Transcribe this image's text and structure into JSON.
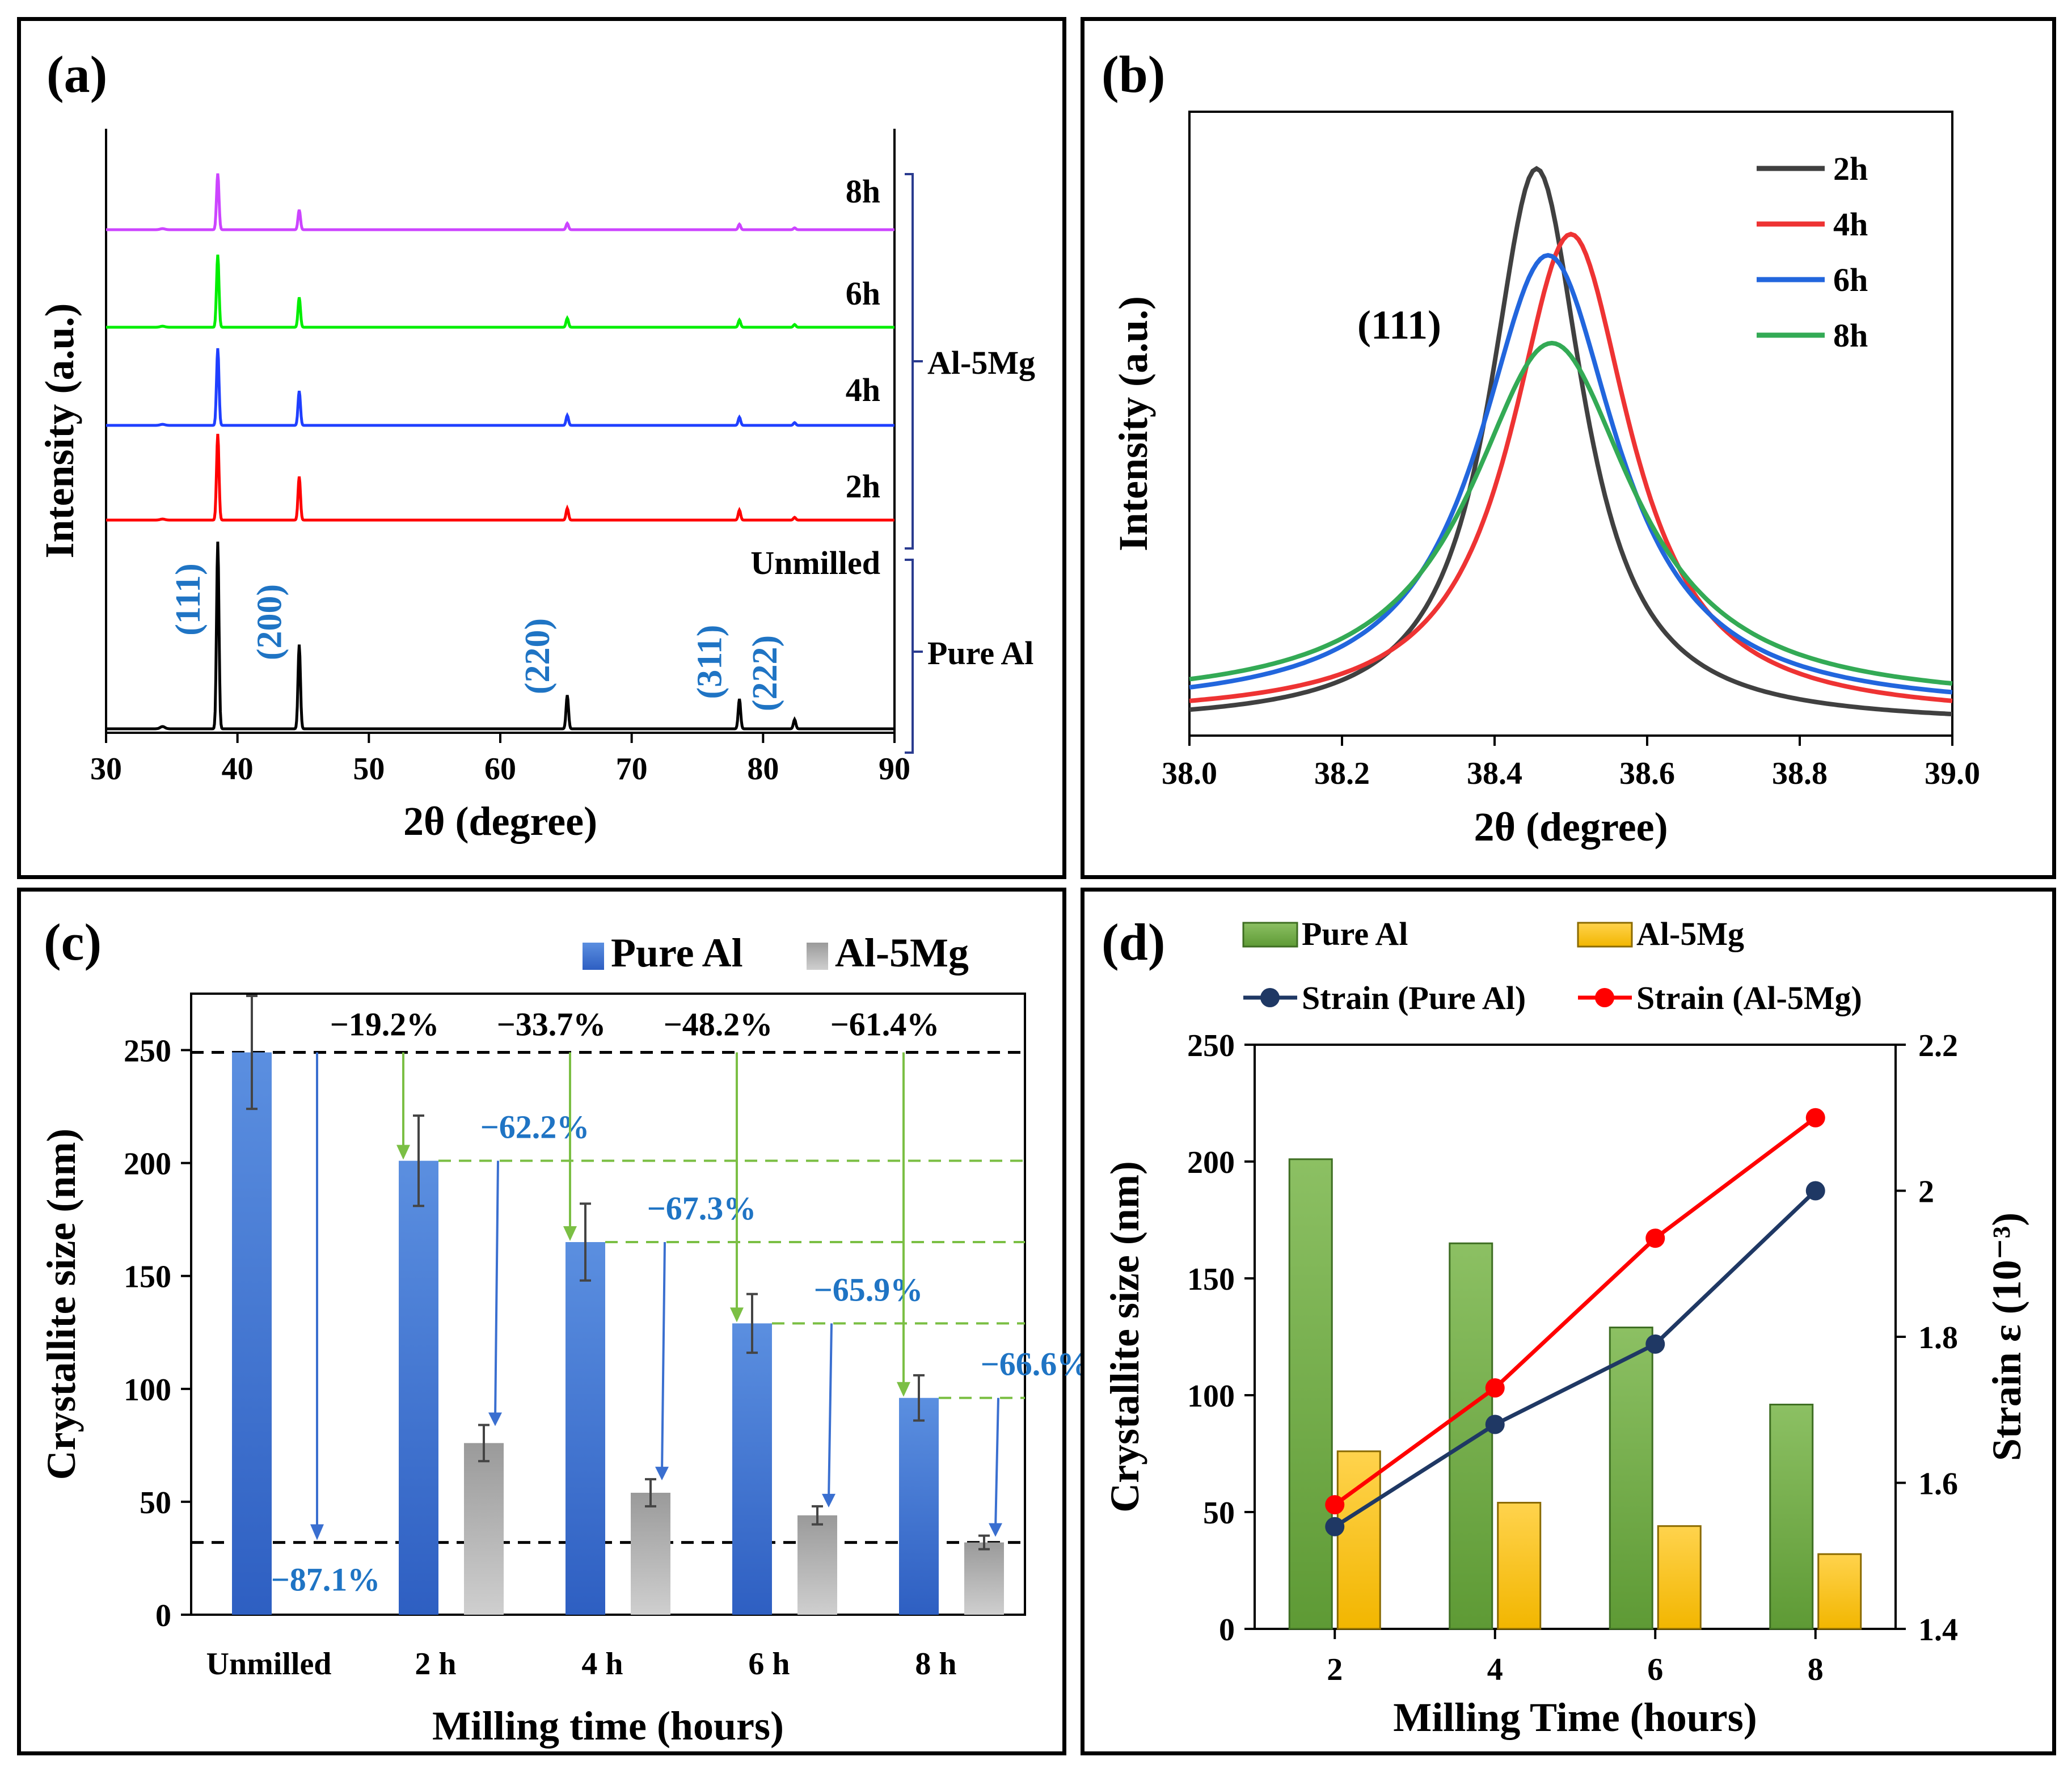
{
  "chart_data": [
    {
      "panel": "(a)",
      "type": "line",
      "xlabel": "2θ (degree)",
      "ylabel": "Intensity (a.u.)",
      "xlim": [
        30,
        90
      ],
      "xticks": [
        30,
        40,
        50,
        60,
        70,
        80,
        90
      ],
      "series": [
        {
          "name": "Unmilled",
          "color": "#000000",
          "peaks": [
            [
              38.5,
              1.0
            ],
            [
              44.7,
              0.45
            ],
            [
              65.1,
              0.18
            ],
            [
              78.2,
              0.16
            ],
            [
              82.4,
              0.05
            ]
          ]
        },
        {
          "name": "2h",
          "color": "#ff0000",
          "peaks": [
            [
              38.5,
              0.95
            ],
            [
              44.7,
              0.48
            ],
            [
              65.1,
              0.13
            ],
            [
              78.2,
              0.11
            ],
            [
              82.4,
              0.03
            ]
          ]
        },
        {
          "name": "4h",
          "color": "#1f3fff",
          "peaks": [
            [
              38.5,
              0.85
            ],
            [
              44.7,
              0.38
            ],
            [
              65.1,
              0.11
            ],
            [
              78.2,
              0.09
            ],
            [
              82.4,
              0.03
            ]
          ]
        },
        {
          "name": "6h",
          "color": "#00ee00",
          "peaks": [
            [
              38.5,
              0.8
            ],
            [
              44.7,
              0.33
            ],
            [
              65.1,
              0.1
            ],
            [
              78.2,
              0.08
            ],
            [
              82.4,
              0.03
            ]
          ]
        },
        {
          "name": "8h",
          "color": "#cc44ff",
          "peaks": [
            [
              38.5,
              0.62
            ],
            [
              44.7,
              0.22
            ],
            [
              65.1,
              0.07
            ],
            [
              78.2,
              0.06
            ],
            [
              82.4,
              0.02
            ]
          ]
        }
      ],
      "peak_labels": [
        {
          "label": "(111)",
          "x": 38.5
        },
        {
          "label": "(200)",
          "x": 44.7
        },
        {
          "label": "(220)",
          "x": 65.1
        },
        {
          "label": "(311)",
          "x": 78.2
        },
        {
          "label": "(222)",
          "x": 82.4
        }
      ],
      "group_labels": [
        "Al-5Mg",
        "Pure Al"
      ]
    },
    {
      "panel": "(b)",
      "type": "line",
      "xlabel": "2θ (degree)",
      "ylabel": "Intensity (a.u.)",
      "xlim": [
        38.0,
        39.0
      ],
      "xticks": [
        "38.0",
        "38.2",
        "38.4",
        "38.6",
        "38.8",
        "39.0"
      ],
      "annotation": "(111)",
      "series": [
        {
          "name": "2h",
          "color": "#404040",
          "center": 38.455,
          "height": 1.0,
          "width": 0.075
        },
        {
          "name": "4h",
          "color": "#ee3333",
          "center": 38.5,
          "height": 0.87,
          "width": 0.095
        },
        {
          "name": "6h",
          "color": "#2266dd",
          "center": 38.47,
          "height": 0.82,
          "width": 0.11
        },
        {
          "name": "8h",
          "color": "#33aa55",
          "center": 38.475,
          "height": 0.65,
          "width": 0.13
        }
      ]
    },
    {
      "panel": "(c)",
      "type": "bar",
      "xlabel": "Milling time (hours)",
      "ylabel": "Crystallite size (nm)",
      "ylim": [
        0,
        275
      ],
      "yticks": [
        0,
        50,
        100,
        150,
        200,
        250
      ],
      "categories": [
        "Unmilled",
        "2 h",
        "4 h",
        "6 h",
        "8 h"
      ],
      "series": [
        {
          "name": "Pure Al",
          "values": [
            249,
            201,
            165,
            129,
            96
          ],
          "errors": [
            25,
            20,
            17,
            13,
            10
          ]
        },
        {
          "name": "Al-5Mg",
          "values": [
            null,
            76,
            54,
            44,
            32
          ],
          "errors": [
            null,
            8,
            6,
            4,
            3
          ]
        }
      ],
      "reduction_labels": [
        "−19.2%",
        "−33.7%",
        "−48.2%",
        "−61.4%"
      ],
      "mg_reduction_labels": [
        "−62.2%",
        "−67.3%",
        "−65.9%",
        "−66.6%"
      ],
      "total_reduction_label": "−87.1%"
    },
    {
      "panel": "(d)",
      "type": "bar",
      "xlabel": "Milling Time (hours)",
      "ylabel": "Crystallite size (nm)",
      "y2label": "Strain ε (10⁻³)",
      "ylim": [
        0,
        250
      ],
      "yticks": [
        0,
        50,
        100,
        150,
        200,
        250
      ],
      "y2lim": [
        1.4,
        2.2
      ],
      "y2ticks": [
        "1.4",
        "1.6",
        "1.8",
        "2",
        "2.2"
      ],
      "categories": [
        "2",
        "4",
        "6",
        "8"
      ],
      "series": [
        {
          "name": "Pure Al",
          "values": [
            201,
            165,
            129,
            96
          ]
        },
        {
          "name": "Al-5Mg",
          "values": [
            76,
            54,
            44,
            32
          ]
        }
      ],
      "lines": [
        {
          "name": "Strain (Pure Al)",
          "color": "#1f3864",
          "values": [
            1.54,
            1.68,
            1.79,
            2.0
          ]
        },
        {
          "name": "Strain (Al-5Mg)",
          "color": "#ff0000",
          "values": [
            1.57,
            1.73,
            1.935,
            2.1
          ]
        }
      ]
    }
  ]
}
